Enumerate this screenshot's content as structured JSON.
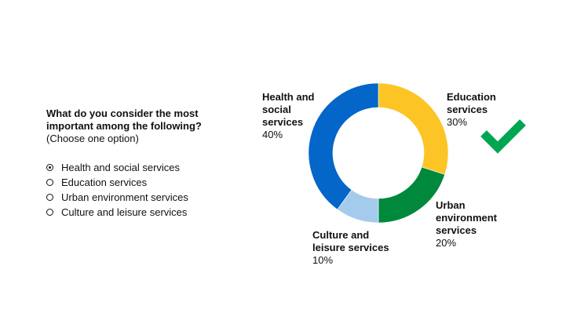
{
  "question": {
    "title": "What do you consider the most important among the following?",
    "hint": "(Choose one option)"
  },
  "options": [
    {
      "label": "Health and social services",
      "selected": true
    },
    {
      "label": "Education services",
      "selected": false
    },
    {
      "label": "Urban environment services",
      "selected": false
    },
    {
      "label": "Culture and leisure services",
      "selected": false
    }
  ],
  "chart_data": {
    "type": "pie",
    "variant": "donut",
    "slices": [
      {
        "label": "Education services",
        "label_text": "Education\nservices",
        "value": 30,
        "value_label": "30%",
        "color": "#fcc525"
      },
      {
        "label": "Urban environment services",
        "label_text": "Urban\nenvironment\nservices",
        "value": 20,
        "value_label": "20%",
        "color": "#00883d"
      },
      {
        "label": "Culture and leisure services",
        "label_text": "Culture and\nleisure services",
        "value": 10,
        "value_label": "10%",
        "color": "#a4cbec"
      },
      {
        "label": "Health and social services",
        "label_text": "Health and\nsocial\nservices",
        "value": 40,
        "value_label": "40%",
        "color": "#0466c8"
      }
    ],
    "start_angle_deg": 0,
    "direction": "clockwise"
  },
  "icons": {
    "check": {
      "name": "check-icon",
      "color": "#00a651"
    }
  }
}
